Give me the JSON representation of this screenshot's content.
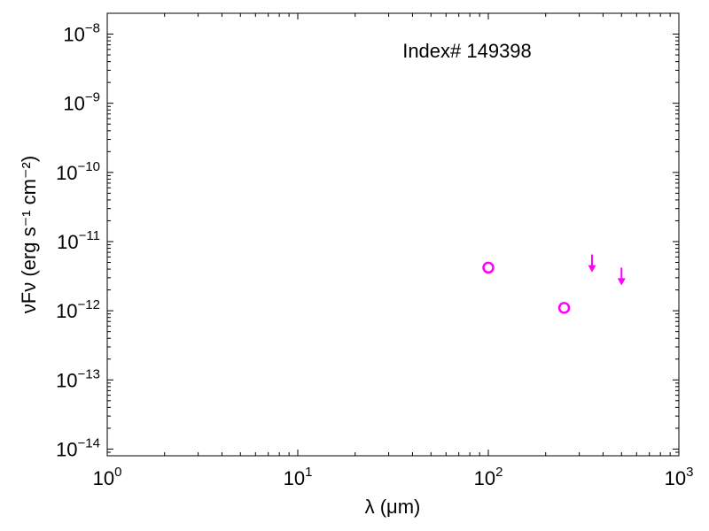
{
  "chart_data": {
    "type": "scatter",
    "title": "",
    "annotation": "Index# 149398",
    "xlabel": "λ (μm)",
    "ylabel": "νFν (erg s⁻¹ cm⁻²)",
    "x_scale": "log",
    "y_scale": "log",
    "xlim": [
      1,
      1000
    ],
    "ylim": [
      8e-15,
      2e-08
    ],
    "x_ticks": [
      {
        "value": 1,
        "base": "10",
        "exp": "0"
      },
      {
        "value": 10,
        "base": "10",
        "exp": "1"
      },
      {
        "value": 100,
        "base": "10",
        "exp": "2"
      },
      {
        "value": 1000,
        "base": "10",
        "exp": "3"
      }
    ],
    "y_ticks": [
      {
        "value": 1e-14,
        "base": "10",
        "exp": "−14"
      },
      {
        "value": 1e-13,
        "base": "10",
        "exp": "−13"
      },
      {
        "value": 1e-12,
        "base": "10",
        "exp": "−12"
      },
      {
        "value": 1e-11,
        "base": "10",
        "exp": "−11"
      },
      {
        "value": 1e-10,
        "base": "10",
        "exp": "−10"
      },
      {
        "value": 1e-09,
        "base": "10",
        "exp": "−9"
      },
      {
        "value": 1e-08,
        "base": "10",
        "exp": "−8"
      }
    ],
    "color": "#ff00ff",
    "detections": [
      {
        "x": 100,
        "y": 4.2e-12
      },
      {
        "x": 250,
        "y": 1.1e-12
      }
    ],
    "upper_limits": [
      {
        "x": 350,
        "y": 6.5e-12
      },
      {
        "x": 500,
        "y": 4.2e-12
      }
    ],
    "grid": false,
    "legend": "none"
  }
}
